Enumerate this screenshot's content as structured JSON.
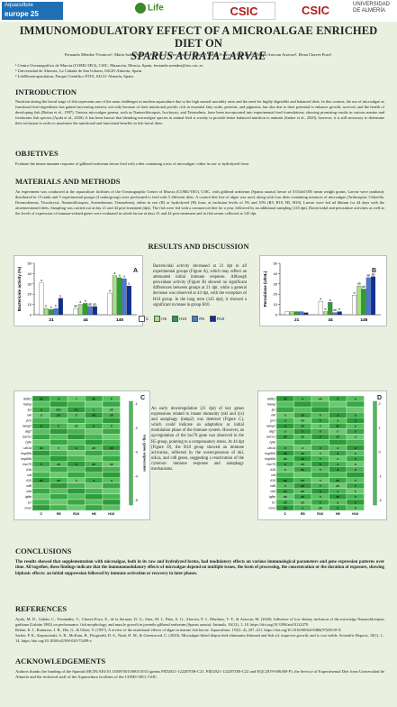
{
  "logos": {
    "aqua_top": "Aquaculture",
    "aqua_bottom": "europe 25",
    "aqua_sub": "",
    "life": "Life",
    "csic1": "CSIC",
    "csic2": "CSIC",
    "ual": "UNIVERSIDAD DE ALMERÍA"
  },
  "title_line1": "IMMUNOMODULATORY EFFECT OF A MICROALGAE ENRICHED DIET ON",
  "title_line2": "SPARUS AURATA LARVAE",
  "authors": "Fernando Méndez-Vivancos¹, María Isabel-Sáez²,³, Francisco Javier Alarcón-López²,³,Tomás Francisco Martínez²,³, Marta Arizcun Arizcun¹, Elena Chaves Pozo¹.",
  "affiliations": [
    "¹ Centro Oceanográfico de Murcia (COMU-IEO), CSIC, Mazarrón, Murcia, Spain, fernando.mendez@ieo.csic.es",
    "² Universidad de Almería, La Cañada de San Urbano, 04120-Almería, Spain.",
    "³ LifeBioencapsulation, Parque Científico PITA, 04131-Almería, Spain."
  ],
  "sections": {
    "intro_h": "INTRODUCTION",
    "intro_p": "Nutrition during the larval stage of fish represents one of the main challenges in modern aquaculture due to the high natural mortality rates and the need for highly digestible and balanced diets. In this context, the use of microalgae as functional feed ingredients has gained increasing interest, not only because of their nutritional profile, rich in essential fatty acids, proteins, and pigments, but also due to their potential to enhance growth, survival, and the health of developing fish (Reitan et al., 1997). Various microalgae genera, such as Nannochloropsis, Isochrysis, and Tetraselmis, have been incorporated into experimental feed formulations, showing promising results in various marine and freshwater fish species (Ayala et al., 2020). It has been known that blending microalgae species in animal feed is worthy to provide better balanced nutrition to animals (Sarker et al., 2020), however, it is still necessary to determine their inclusion in order to maximize the nutritional and functional benefits in fish larval diets.",
    "obj_h": "OBJETIVES",
    "obj_p": "Evaluate the innate immune response of gilthead seabream larvae feed with a diet containing a mix of microalgae, either in raw or hydrolyzed form.",
    "mm_h": "MATERIALS AND METHODS",
    "mm_p": "An experiment was conducted at the aquaculture facilities of the Oceanographic Center of Murcia (COMU-IEO), CSIC, with gilthead seabream (Sparus aurata) larvae of 0.034±0.005 mean weight grams. Larvae were randomly distributed in 15 tanks and 5 experimental groups (3 tanks/group) were performed to feed with 5 different diets. A control diet free of algae was used, along with four diets containing mixtures of microalgae (Arthrospira, Chlorella, Desmodesmus, Tisochrysis, Nannochloropsis, Scenedesmus, Tetraselmis), either in raw (R) or hydrolyzed (H) form, at inclusion levels of 5% and 10% (R5, R10, H5, H10). Larvae were fed ad libitum for 44 days with the aforementioned diets. Sampling was carried out at day 21 and 44 post-treatment (dpt). The fish were fed with a commercial diet for a year, followed by an additional sampling (145 dpt). Bactericidal and peroxidase activities as well as the levels of expression of immune-related genes were evaluated in whole larvae at days 21 and 44 post-treatment and in fish serum collected at 145 dpt.",
    "rd_h": "RESULTS AND DISCUSSION",
    "rd_text1": "Bactericidal activity decreased at 21 dpt in all experimental groups (Figure A), which may reflect an attenuated initial immune response. Although peroxidase activity (Figure B) showed no significant differences between groups at 21 dpt, while a general decrease was observed at 44 dpt, with the exception of H10 group. In the long term (145 dpt), it showed a significant increase in group H10.",
    "rd_text2": "An early downregulation (21 dpt) of key genes expressions related to innate immunity (nkl and lyz) and autophagy (lamp2) was detected (Figure C), which could indicate an adaptation or initial modulation phase of the immune system. However, an up-regulation of the hsc70 gene was observed in the R5 group, pointing to a compensatory stress. At 44 dpt (Figure D), the R10 group showed an immune activation, reflected by the overexpression of nkl, ulk1a, and cd8 genes, suggesting a reactivation of the cytotoxic immune response and autophagy mechanisms.",
    "conc_h": "CONCLUSIONS",
    "conc_p": "The results showed that supplementation with microalgae, both in its raw and hydrolyzed forms, had modulatory effects on various immunological parameters and gene expression patterns over time. All together, these findings indicate that the immunomodulatory effects of microalgae depend on multiple issues, the form of processing, the concentration or the duration of exposure, showing biphasic effects: an initial suppression followed by immune activation or recovery in later phases.",
    "ref_h": "REFERENCES",
    "ref_p": [
      "Ayala, M. D., Galián, C., Fernández, V., Chaves-Pozo, E., de la Serrana, D. G., Sáez, M. I., Díaz, A. G., Alarcón, F. J., Martínez, T. F., & Arizcun, M. (2020). Influence of low dietary inclusion of the microalga Nannochloropsis gaditana (Lubián 1982) on performance, fish morphology, and muscle growth in juvenile gilthead seabream (Sparus aurata). Animals, 10(12), 1–18. https://doi.org/10.3390/ani10122270",
      "Reitan, K. I., Rainuzzo, J. R., Øie, G., & Olsen, Y. (1997). A review of the nutritional effects of algae in marine fish larvae. Aquaculture, 155(1–4), 207–221. https://doi.org/10.1016/S0044-8486(97)00118-X",
      "Sarker, P. K., Kapuscinski, A. R., McKuin, B., Fitzgerald, D. S., Nash, H. M., & Greenwood, C. (2020). Microalgae-blend tilapia feed eliminates fishmeal and fish oil, improves growth, and is cost viable. Scientific Reports, 10(1), 1–14. https://doi.org/10.1038/s41598-020-75289-x"
    ],
    "ack_h": "ACKNOWLEDGEMENTS",
    "ack_p": "Authors thanks the funding of the Spanish MCIN/AEI/10.13039/501100011033 (grants PID2021-122287OB-C21, PID2021-122287OB-C22 and EQC2019-006380-P), the Service of Experimental Diet from Universidad de Almería and the technical staff of the Aquaculture facilities of the COMU-IEO, CSIC."
  },
  "colors": {
    "C": "#ffffff",
    "H5": "#a8e08a",
    "H10": "#2f9e2f",
    "R5": "#4a78d8",
    "R10": "#0b2f9a"
  },
  "legend": [
    "C",
    "H5",
    "H10",
    "R5",
    "R10"
  ],
  "chart_data": [
    {
      "type": "bar",
      "panel": "A",
      "ylabel": "Bactericide activity (%)",
      "ylim": [
        0,
        50
      ],
      "yticks": [
        0,
        10,
        20,
        30,
        40,
        50
      ],
      "categories": [
        "21",
        "44",
        "145"
      ],
      "series": [
        {
          "name": "C",
          "values": [
            31,
            6,
            21
          ],
          "letters": [
            "a",
            "ab",
            "a"
          ]
        },
        {
          "name": "H5",
          "values": [
            6,
            10,
            38
          ],
          "letters": [
            "b",
            "a",
            "a"
          ]
        },
        {
          "name": "H10",
          "values": [
            5,
            11,
            36
          ],
          "letters": [
            "b",
            "b",
            "a"
          ]
        },
        {
          "name": "R5",
          "values": [
            6,
            8,
            35
          ],
          "letters": [
            "b",
            "ab",
            "a"
          ]
        },
        {
          "name": "R10",
          "values": [
            16,
            8,
            28
          ],
          "letters": [
            "b",
            "ab",
            "a"
          ]
        }
      ]
    },
    {
      "type": "bar",
      "panel": "B",
      "ylabel": "Peroxidase (U/mL)",
      "ylim": [
        0,
        50
      ],
      "yticks": [
        0,
        10,
        20,
        30,
        40,
        50
      ],
      "categories": [
        "21",
        "44",
        "145"
      ],
      "series": [
        {
          "name": "C",
          "values": [
            3,
            13,
            19
          ],
          "letters": [
            "",
            "a",
            "b"
          ]
        },
        {
          "name": "H5",
          "values": [
            3,
            3,
            28
          ],
          "letters": [
            "",
            "b",
            "ab"
          ]
        },
        {
          "name": "H10",
          "values": [
            3,
            12,
            25
          ],
          "letters": [
            "",
            "a",
            "ab"
          ]
        },
        {
          "name": "R5",
          "values": [
            3,
            2,
            36
          ],
          "letters": [
            "",
            "ab",
            "ab"
          ]
        },
        {
          "name": "R10",
          "values": [
            2,
            3,
            37
          ],
          "letters": [
            "",
            "b",
            "ab"
          ]
        }
      ]
    },
    {
      "type": "heatmap",
      "panel": "C",
      "colorbar_label": "log₂ gene expression",
      "colorbar_ticks": [
        "-1",
        "-2",
        "-3",
        "-4",
        "-5"
      ],
      "columns": [
        "C",
        "R5",
        "R10",
        "H5",
        "H10"
      ],
      "rows": [
        "defb1",
        "hamp",
        "lyz",
        "nkl",
        "pcn",
        "lamp2",
        "atg7",
        "becn1",
        "cpfe",
        "ulk1a",
        "hsp90b",
        "hsp90b",
        "hsc70",
        "il1b",
        "cat",
        "il10",
        "cd8",
        "cd4",
        "igfbr",
        "tcr",
        "cox2"
      ],
      "letters": [
        [
          "ab",
          "a",
          "c",
          "ab",
          "b"
        ],
        [
          "",
          "",
          "",
          "",
          ""
        ],
        [
          "a",
          "abc",
          "bc",
          "c",
          "ab"
        ],
        [
          "a",
          "ab",
          "b",
          "ab",
          "ab"
        ],
        [
          "",
          "",
          "",
          "",
          ""
        ],
        [
          "a",
          "b",
          "ab",
          "b",
          "b"
        ],
        [
          "",
          "",
          "",
          "",
          ""
        ],
        [
          "",
          "",
          "",
          "",
          ""
        ],
        [
          "",
          "",
          "",
          "",
          ""
        ],
        [
          "ab",
          "b",
          "a",
          "ab",
          "ab"
        ],
        [
          "",
          "",
          "",
          "",
          ""
        ],
        [
          "",
          "",
          "",
          "",
          ""
        ],
        [
          "b",
          "ab",
          "a",
          "ab",
          "ab"
        ],
        [
          "",
          "",
          "",
          "",
          ""
        ],
        [
          "",
          "",
          "",
          "",
          ""
        ],
        [
          "ab",
          "ab",
          "b",
          "a",
          "a"
        ],
        [
          "",
          "",
          "",
          "",
          ""
        ],
        [
          "",
          "",
          "",
          "",
          ""
        ],
        [
          "",
          "",
          "",
          "",
          ""
        ],
        [
          "",
          "",
          "",
          "",
          ""
        ],
        [
          "",
          "",
          "",
          "",
          ""
        ]
      ]
    },
    {
      "type": "heatmap",
      "panel": "D",
      "colorbar_label": "log₂ gene expression",
      "colorbar_ticks": [
        "2",
        "1",
        "0",
        "-1",
        "-2"
      ],
      "columns": [
        "C",
        "R5",
        "R10",
        "H5",
        "H10"
      ],
      "rows": [
        "defb1",
        "hamp",
        "lyz",
        "nkl",
        "pcn",
        "lamp2",
        "atg7",
        "becn1",
        "cpfe",
        "ulk1a",
        "hsp90b",
        "hsp90b",
        "hsc70",
        "il1b",
        "cat",
        "il10",
        "cd8",
        "cd4",
        "igfbr",
        "tcr",
        "cox2"
      ],
      "letters": [
        [
          "ab",
          "a",
          "ab",
          "b",
          "a"
        ],
        [
          "",
          "",
          "",
          "",
          ""
        ],
        [
          "",
          "",
          "",
          "",
          ""
        ],
        [
          "a",
          "ab",
          "b",
          "a",
          "a"
        ],
        [
          "a",
          "ab",
          "b",
          "a",
          "a"
        ],
        [
          "a",
          "ab",
          "b",
          "ab",
          "a"
        ],
        [
          "a",
          "b",
          "b",
          "b",
          "b"
        ],
        [
          "ab",
          "ab",
          "b",
          "ab",
          "a"
        ],
        [
          "",
          "",
          "",
          "",
          ""
        ],
        [
          "a",
          "a",
          "b",
          "a",
          "a"
        ],
        [
          "ab",
          "ab",
          "b",
          "a",
          "a"
        ],
        [
          "ab",
          "ab",
          "b",
          "a",
          "b"
        ],
        [
          "b",
          "ab",
          "b",
          "a",
          "a"
        ],
        [
          "a",
          "ab",
          "b",
          "a",
          "a"
        ],
        [
          "",
          "",
          "",
          "",
          ""
        ],
        [
          "ab",
          "ab",
          "b",
          "ab",
          "b"
        ],
        [
          "a",
          "ab",
          "b",
          "ab",
          "b"
        ],
        [
          "ab",
          "ab",
          "b",
          "a",
          "b"
        ],
        [
          "ab",
          "ab",
          "b",
          "ab",
          "b"
        ],
        [
          "ab",
          "ab",
          "b",
          "a",
          "b"
        ],
        [
          "ab",
          "a",
          "ab",
          "b",
          "b"
        ]
      ]
    }
  ]
}
